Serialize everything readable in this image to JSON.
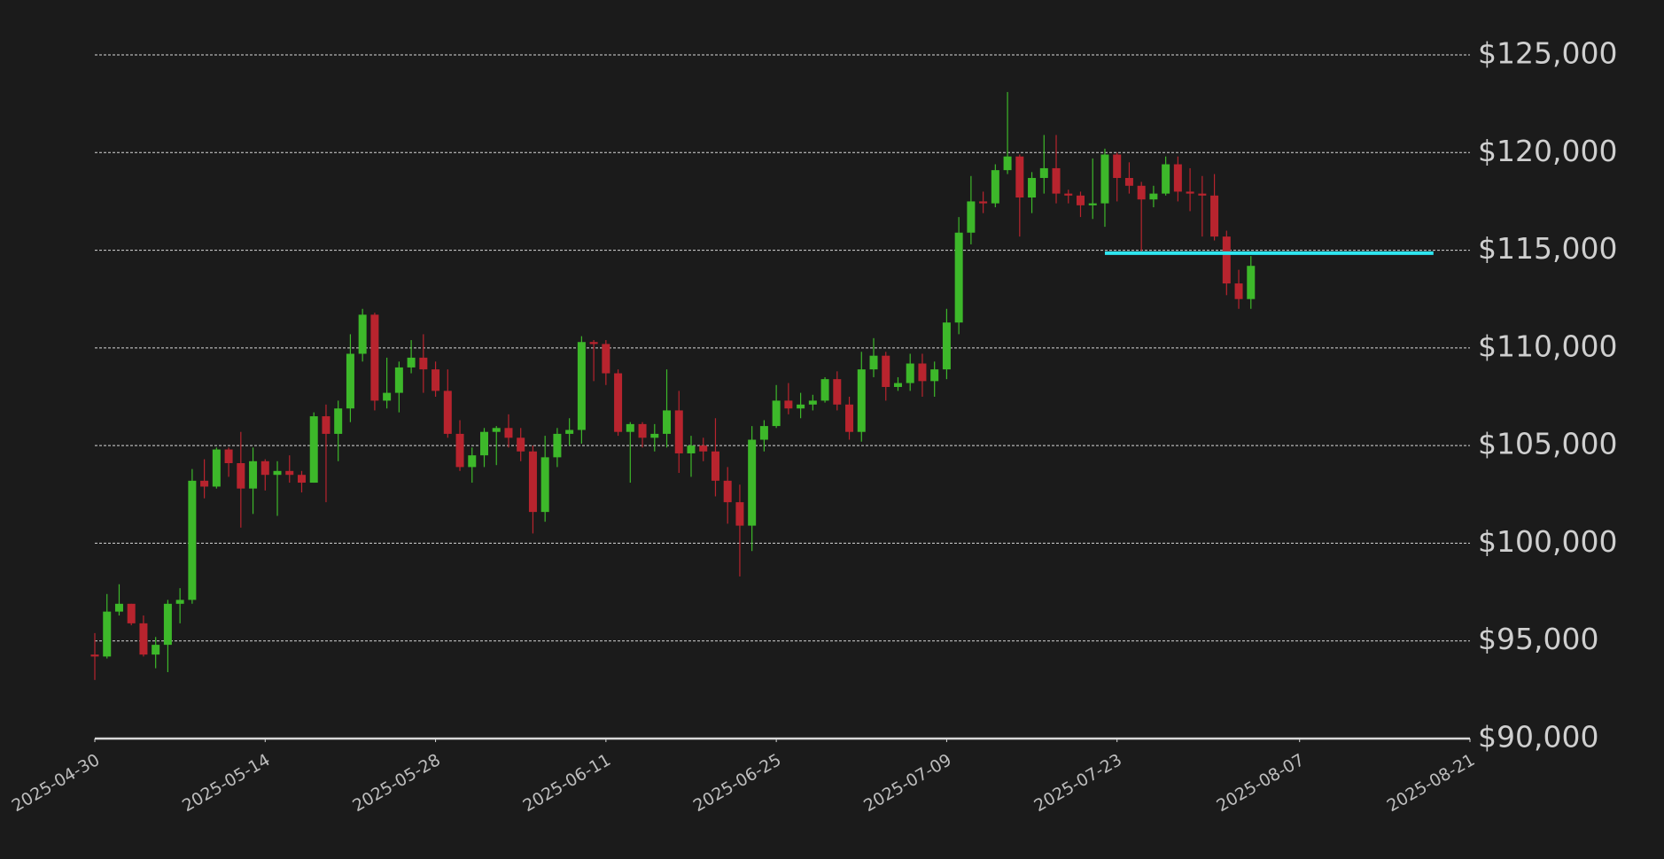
{
  "chart_data": {
    "type": "candlestick",
    "x": [
      "2025-04-30",
      "2025-05-01",
      "2025-05-02",
      "2025-05-03",
      "2025-05-04",
      "2025-05-05",
      "2025-05-06",
      "2025-05-07",
      "2025-05-08",
      "2025-05-09",
      "2025-05-10",
      "2025-05-11",
      "2025-05-12",
      "2025-05-13",
      "2025-05-14",
      "2025-05-15",
      "2025-05-16",
      "2025-05-17",
      "2025-05-18",
      "2025-05-19",
      "2025-05-20",
      "2025-05-21",
      "2025-05-22",
      "2025-05-23",
      "2025-05-24",
      "2025-05-25",
      "2025-05-26",
      "2025-05-27",
      "2025-05-28",
      "2025-05-29",
      "2025-05-30",
      "2025-05-31",
      "2025-06-01",
      "2025-06-02",
      "2025-06-03",
      "2025-06-04",
      "2025-06-05",
      "2025-06-06",
      "2025-06-07",
      "2025-06-08",
      "2025-06-09",
      "2025-06-10",
      "2025-06-11",
      "2025-06-12",
      "2025-06-13",
      "2025-06-14",
      "2025-06-15",
      "2025-06-16",
      "2025-06-17",
      "2025-06-18",
      "2025-06-19",
      "2025-06-20",
      "2025-06-21",
      "2025-06-22",
      "2025-06-23",
      "2025-06-24",
      "2025-06-25",
      "2025-06-26",
      "2025-06-27",
      "2025-06-28",
      "2025-06-29",
      "2025-06-30",
      "2025-07-01",
      "2025-07-02",
      "2025-07-03",
      "2025-07-04",
      "2025-07-05",
      "2025-07-06",
      "2025-07-07",
      "2025-07-08",
      "2025-07-09",
      "2025-07-10",
      "2025-07-11",
      "2025-07-12",
      "2025-07-13",
      "2025-07-14",
      "2025-07-15",
      "2025-07-16",
      "2025-07-17",
      "2025-07-18",
      "2025-07-19",
      "2025-07-20",
      "2025-07-21",
      "2025-07-22",
      "2025-07-23",
      "2025-07-24",
      "2025-07-25",
      "2025-07-26",
      "2025-07-27",
      "2025-07-28",
      "2025-07-29",
      "2025-07-30",
      "2025-07-31",
      "2025-08-01",
      "2025-08-02",
      "2025-08-03"
    ],
    "open": [
      94300,
      94200,
      96500,
      96900,
      95900,
      94300,
      94800,
      96900,
      97100,
      103200,
      102900,
      104800,
      104100,
      102800,
      104200,
      103500,
      103700,
      103500,
      103100,
      106500,
      105600,
      106900,
      109700,
      111700,
      107300,
      107700,
      109000,
      109500,
      108900,
      107800,
      105600,
      103900,
      104500,
      105700,
      105900,
      105400,
      104700,
      101600,
      104400,
      105600,
      105800,
      110300,
      110200,
      108700,
      105700,
      106100,
      105400,
      105600,
      106800,
      104600,
      105000,
      104700,
      103200,
      102100,
      100900,
      105300,
      106000,
      107300,
      106900,
      107100,
      107300,
      108400,
      107100,
      105700,
      108900,
      109600,
      108000,
      108200,
      109200,
      108300,
      108900,
      111300,
      115900,
      117500,
      117400,
      119100,
      119800,
      117700,
      118700,
      119200,
      117900,
      117800,
      117300,
      117400,
      119900,
      118700,
      118300,
      117600,
      117900,
      119400,
      118000,
      117900,
      117800,
      115700,
      113300,
      112500
    ],
    "high": [
      95400,
      97400,
      97900,
      96900,
      96300,
      95200,
      97100,
      97700,
      103800,
      104300,
      104900,
      104900,
      105700,
      104900,
      104300,
      104200,
      104500,
      103700,
      106700,
      107100,
      107300,
      110700,
      112000,
      111800,
      109500,
      109300,
      110400,
      110700,
      109300,
      108900,
      106300,
      104900,
      105900,
      106000,
      106600,
      105900,
      105000,
      105500,
      105900,
      106400,
      110600,
      110400,
      110400,
      108900,
      106200,
      106200,
      106100,
      108900,
      107800,
      105500,
      105400,
      106400,
      103900,
      103000,
      106000,
      106300,
      108100,
      108200,
      107700,
      107600,
      108500,
      108800,
      107500,
      109800,
      110500,
      109800,
      108500,
      109700,
      109700,
      109300,
      112000,
      116700,
      118800,
      118000,
      119400,
      123100,
      119900,
      119000,
      120900,
      120900,
      118100,
      118000,
      119700,
      120200,
      120000,
      119500,
      118500,
      118300,
      119800,
      119800,
      119200,
      118800,
      118900,
      116000,
      114000,
      114700
    ],
    "low": [
      93000,
      94100,
      96300,
      95800,
      94200,
      93600,
      93400,
      95900,
      96900,
      102300,
      102800,
      103400,
      100800,
      101500,
      102700,
      101400,
      103100,
      102600,
      103100,
      102100,
      104200,
      106200,
      109300,
      106800,
      106900,
      106700,
      108700,
      107700,
      107500,
      105400,
      103700,
      103100,
      103900,
      104000,
      104900,
      104200,
      100500,
      101100,
      103900,
      105000,
      105100,
      108300,
      108100,
      105500,
      103100,
      104900,
      104700,
      104900,
      103600,
      103400,
      104200,
      102400,
      101000,
      98300,
      99600,
      104700,
      105900,
      106600,
      106400,
      106800,
      107200,
      106800,
      105300,
      105200,
      108500,
      107300,
      107800,
      107800,
      107500,
      107500,
      108400,
      110700,
      115300,
      116900,
      117200,
      118900,
      115700,
      116900,
      117900,
      117400,
      117400,
      116700,
      116600,
      116200,
      117500,
      117900,
      114800,
      117200,
      117800,
      117500,
      117000,
      115700,
      115500,
      112700,
      112000,
      112000
    ],
    "close": [
      94200,
      96500,
      96900,
      95900,
      94300,
      94800,
      96900,
      97100,
      103200,
      102900,
      104800,
      104100,
      102800,
      104200,
      103500,
      103700,
      103500,
      103100,
      106500,
      105600,
      106900,
      109700,
      111700,
      107300,
      107700,
      109000,
      109500,
      108900,
      107800,
      105600,
      103900,
      104500,
      105700,
      105900,
      105400,
      104700,
      101600,
      104400,
      105600,
      105800,
      110300,
      110200,
      108700,
      105700,
      106100,
      105400,
      105600,
      106800,
      104600,
      105000,
      104700,
      103200,
      102100,
      100900,
      105300,
      106000,
      107300,
      106900,
      107100,
      107300,
      108400,
      107100,
      105700,
      108900,
      109600,
      108000,
      108200,
      109200,
      108300,
      108900,
      111300,
      115900,
      117500,
      117400,
      119100,
      119800,
      117700,
      118700,
      119200,
      117900,
      117800,
      117300,
      117400,
      119900,
      118700,
      118300,
      117600,
      117900,
      119400,
      118000,
      117900,
      117800,
      115700,
      113300,
      112500,
      114200
    ],
    "up_color": "#3db82a",
    "down_color": "#b8242e",
    "hline": {
      "value": 114850,
      "x0": "2025-07-22",
      "x1": "2025-08-18",
      "color": "#2ee6f0"
    },
    "xlim": [
      "2025-04-30",
      "2025-08-21"
    ],
    "xticks": [
      "2025-04-30",
      "2025-05-14",
      "2025-05-28",
      "2025-06-11",
      "2025-06-25",
      "2025-07-09",
      "2025-07-23",
      "2025-08-07",
      "2025-08-21"
    ],
    "ylim": [
      90000,
      125000
    ],
    "yticks": [
      {
        "value": 90000,
        "label": "$90,000"
      },
      {
        "value": 95000,
        "label": "$95,000"
      },
      {
        "value": 100000,
        "label": "$100,000"
      },
      {
        "value": 105000,
        "label": "$105,000"
      },
      {
        "value": 110000,
        "label": "$110,000"
      },
      {
        "value": 115000,
        "label": "$115,000"
      },
      {
        "value": 120000,
        "label": "$120,000"
      },
      {
        "value": 125000,
        "label": "$125,000"
      }
    ],
    "grid": true
  }
}
